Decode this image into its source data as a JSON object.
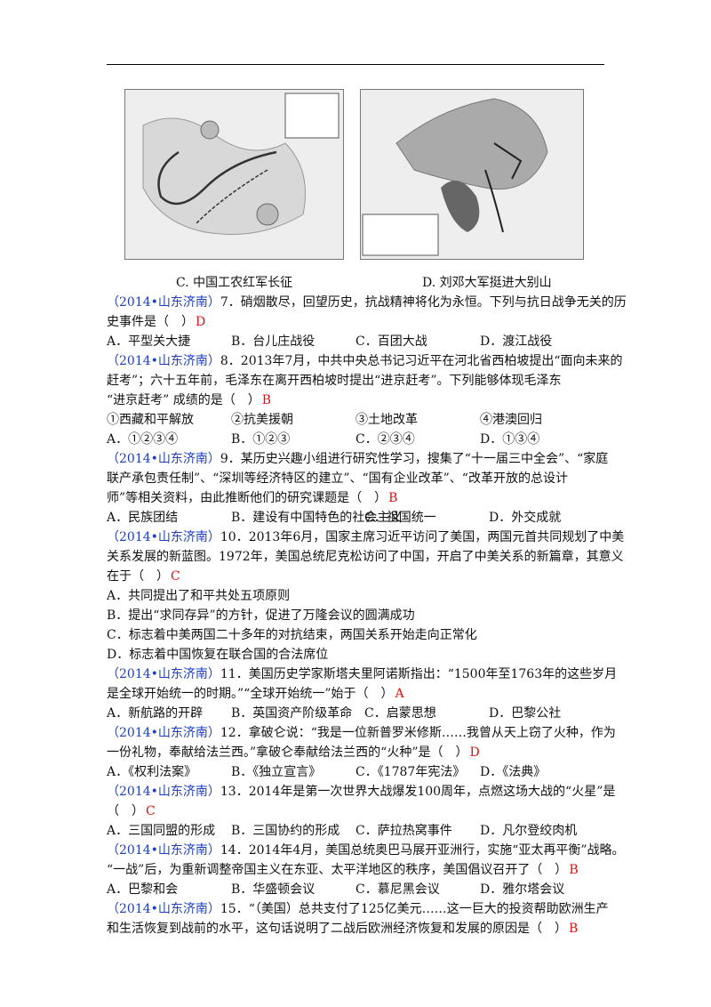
{
  "q6_options": [
    "C. 中国工农红军长征",
    "D. 刘邓大军挺进大别山"
  ],
  "questions": [
    {
      "source": "（2014•山东济南）",
      "stem_lines": [
        "7．硝烟散尽，回望历史，抗战精神将化为永恒。下列与抗日战争无关的历",
        "史事件是（　）"
      ],
      "answer": "D",
      "option_rows": [
        [
          "A．平型关大捷",
          "B．台儿庄战役",
          "C．百团大战",
          "D．渡江战役"
        ]
      ]
    },
    {
      "source": "（2014•山东济南）",
      "stem_lines": [
        "8．2013年7月，中共中央总书记习近平在河北省西柏坡提出“面向未来的",
        "赶考”；六十五年前，毛泽东在离开西柏坡时提出“进京赶考”。下列能够体现毛泽东",
        "“进京赶考” 成绩的是（　）"
      ],
      "answer": "B",
      "option_rows": [
        [
          "①西藏和平解放",
          "②抗美援朝",
          "③土地改革",
          "④港澳回归"
        ],
        [
          "A．①②③④",
          "B．①②③",
          "C．②③④",
          "D．①③④"
        ]
      ]
    },
    {
      "source": "（2014•山东济南）",
      "stem_lines": [
        "9．某历史兴趣小组进行研究性学习，搜集了“十一届三中全会”、“家庭",
        "联产承包责任制”、“深圳等经济特区的建立”、“国有企业改革”、“改革开放的总设计",
        "师”等相关资料，由此推断他们的研究课题是（　）"
      ],
      "answer": "B",
      "option_rows": [
        [
          "A．民族团结",
          "B．建设有中国特色的社会主义",
          "C．祖国统一",
          "D．外交成就"
        ]
      ]
    },
    {
      "source": "（2014•山东济南）",
      "stem_lines": [
        "10．2013年6月，国家主席习近平访问了美国，两国元首共同规划了中美",
        "关系发展的新蓝图。1972年，美国总统尼克松访问了中国，开启了中美关系的新篇章，其意义",
        "在于（　）"
      ],
      "answer": "C",
      "option_rows": [
        [
          "A．共同提出了和平共处五项原则"
        ],
        [
          "B．提出“求同存异”的方针，促进了万隆会议的圆满成功"
        ],
        [
          "C．标志着中美两国二十多年的对抗结束，两国关系开始走向正常化"
        ],
        [
          "D．标志着中国恢复在联合国的合法席位"
        ]
      ]
    },
    {
      "source": "（2014•山东济南）",
      "stem_lines": [
        "11．美国历史学家斯塔夫里阿诺斯指出：“1500年至1763年的这些岁月",
        "是全球开始统一的时期。”“全球开始统一”始于（　）"
      ],
      "answer": "A",
      "option_rows": [
        [
          "A．新航路的开辟",
          "B．英国资产阶级革命",
          "C．启蒙思想",
          "D．巴黎公社"
        ]
      ]
    },
    {
      "source": "（2014•山东济南）",
      "stem_lines": [
        "12．拿破仑说：“我是一位新普罗米修斯……我曾从天上窃了火种，作为",
        "一份礼物，奉献给法兰西。”拿破仑奉献给法兰西的“火种”是（　）"
      ],
      "answer": "D",
      "option_rows": [
        [
          "A．《权利法案》",
          "B．《独立宣言》",
          "C．《1787年宪法》",
          "D．《法典》"
        ]
      ]
    },
    {
      "source": "（2014•山东济南）",
      "stem_lines": [
        "13．2014年是第一次世界大战爆发100周年，点燃这场大战的“火星”是",
        "（　）"
      ],
      "answer": "C",
      "option_rows": [
        [
          "A．三国同盟的形成",
          "B．三国协约的形成",
          "C．萨拉热窝事件",
          "D．凡尔登绞肉机"
        ]
      ]
    },
    {
      "source": "（2014•山东济南）",
      "stem_lines": [
        "14．2014年4月，美国总统奥巴马展开亚洲行，实施“亚太再平衡”战略。",
        "“一战”后，为重新调整帝国主义在东亚、太平洋地区的秩序，美国倡议召开了（　）"
      ],
      "answer": "B",
      "option_rows": [
        [
          "A．巴黎和会",
          "B．华盛顿会议",
          "C．慕尼黑会议",
          "D．雅尔塔会议"
        ]
      ]
    },
    {
      "source": "（2014•山东济南）",
      "stem_lines": [
        "15．“（美国）总共支付了125亿美元……这一巨大的投资帮助欧洲生产",
        "和生活恢复到战前的水平，这句话说明了二战后欧洲经济恢复和发展的原因是（　）"
      ],
      "answer": "B",
      "option_rows": []
    }
  ]
}
